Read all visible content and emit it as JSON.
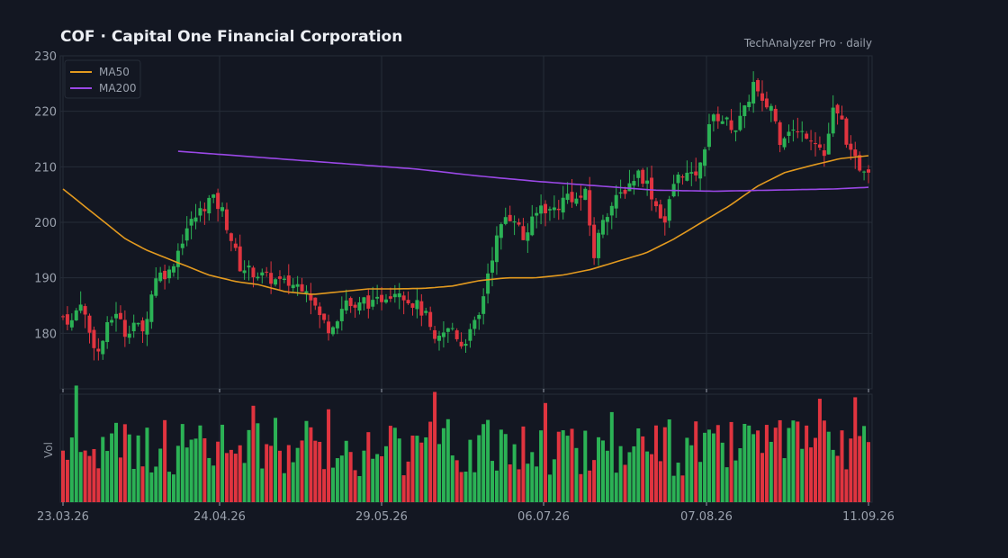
{
  "header": {
    "title": "COF  ·  Capital One Financial Corporation",
    "source": "TechAnalyzer Pro · daily"
  },
  "colors": {
    "up": "#2bb255",
    "down": "#e0343f",
    "ma50": "#e39a1f",
    "ma200": "#9a48e6",
    "grid": "#262c38",
    "background": "#131722"
  },
  "chart_data": {
    "type": "candlestick",
    "title": "COF  ·  Capital One Financial Corporation",
    "ylim": [
      170,
      230
    ],
    "yticks": [
      180,
      190,
      200,
      210,
      220,
      230
    ],
    "xticks": [
      "23.03.26",
      "24.04.26",
      "29.05.26",
      "06.07.26",
      "07.08.26",
      "11.09.26"
    ],
    "volume_label": "Vol",
    "grid": true,
    "legend": {
      "placement": "top-left",
      "entries": [
        "MA50",
        "MA200"
      ]
    },
    "candles": [],
    "ma50": [],
    "ma200": [],
    "control_points": {
      "close": [
        [
          0,
          183
        ],
        [
          2,
          182
        ],
        [
          4,
          186
        ],
        [
          6,
          180
        ],
        [
          8,
          176.5
        ],
        [
          10,
          181
        ],
        [
          12,
          184
        ],
        [
          14,
          180
        ],
        [
          16,
          182
        ],
        [
          18,
          180
        ],
        [
          21,
          190.5
        ],
        [
          24,
          191
        ],
        [
          26,
          195
        ],
        [
          28,
          199
        ],
        [
          30,
          201
        ],
        [
          33,
          204
        ],
        [
          34,
          204
        ],
        [
          36,
          202
        ],
        [
          38,
          197
        ],
        [
          40,
          192
        ],
        [
          43,
          191
        ],
        [
          46,
          190
        ],
        [
          50,
          189
        ],
        [
          55,
          188.5
        ],
        [
          58,
          183
        ],
        [
          60,
          181
        ],
        [
          62,
          183
        ],
        [
          64,
          186
        ],
        [
          66,
          184
        ],
        [
          68,
          186
        ],
        [
          70,
          185
        ],
        [
          73,
          187
        ],
        [
          76,
          188
        ],
        [
          78,
          186
        ],
        [
          80,
          185
        ],
        [
          82,
          183
        ],
        [
          84,
          178
        ],
        [
          86,
          180
        ],
        [
          88,
          181
        ],
        [
          90,
          178
        ],
        [
          92,
          180
        ],
        [
          94,
          183
        ],
        [
          96,
          191
        ],
        [
          98,
          197
        ],
        [
          100,
          201
        ],
        [
          102,
          201
        ],
        [
          104,
          197
        ],
        [
          106,
          200
        ],
        [
          108,
          203
        ],
        [
          110,
          202
        ],
        [
          112,
          203
        ],
        [
          114,
          205
        ],
        [
          116,
          204
        ],
        [
          118,
          205
        ],
        [
          120,
          194
        ],
        [
          122,
          201
        ],
        [
          124,
          203
        ],
        [
          126,
          205
        ],
        [
          128,
          207
        ],
        [
          130,
          209
        ],
        [
          132,
          207
        ],
        [
          134,
          203
        ],
        [
          136,
          200
        ],
        [
          138,
          207
        ],
        [
          140,
          209
        ],
        [
          142,
          208
        ],
        [
          144,
          210
        ],
        [
          146,
          218
        ],
        [
          148,
          219
        ],
        [
          150,
          218
        ],
        [
          152,
          217
        ],
        [
          154,
          220
        ],
        [
          156,
          225
        ],
        [
          158,
          221
        ],
        [
          160,
          221
        ],
        [
          162,
          215
        ],
        [
          164,
          217
        ],
        [
          166,
          216
        ],
        [
          168,
          216
        ],
        [
          170,
          215
        ],
        [
          172,
          212
        ],
        [
          174,
          220
        ],
        [
          176,
          218
        ],
        [
          178,
          212
        ],
        [
          180,
          210
        ],
        [
          182,
          210
        ]
      ],
      "ma50": [
        [
          0,
          206
        ],
        [
          3,
          203
        ],
        [
          6,
          200
        ],
        [
          9,
          197
        ],
        [
          12,
          195
        ],
        [
          15,
          193.5
        ],
        [
          18,
          192
        ],
        [
          21,
          190.5
        ],
        [
          25,
          189.3
        ],
        [
          28,
          188.8
        ],
        [
          32,
          187.5
        ],
        [
          36,
          187
        ],
        [
          40,
          187.5
        ],
        [
          44,
          188
        ],
        [
          48,
          188
        ],
        [
          52,
          188.1
        ],
        [
          56,
          188.5
        ],
        [
          60,
          189.5
        ],
        [
          64,
          190
        ],
        [
          68,
          190
        ],
        [
          72,
          190.5
        ],
        [
          76,
          191.5
        ],
        [
          80,
          193
        ],
        [
          84,
          194.5
        ],
        [
          88,
          197
        ],
        [
          92,
          200
        ],
        [
          96,
          203
        ],
        [
          100,
          206.5
        ],
        [
          104,
          209
        ],
        [
          108,
          210.3
        ],
        [
          112,
          211.5
        ],
        [
          116,
          212
        ]
      ],
      "ma200": [
        [
          0,
          212.8
        ],
        [
          10,
          212
        ],
        [
          20,
          211.2
        ],
        [
          30,
          210.4
        ],
        [
          40,
          209.6
        ],
        [
          50,
          208.4
        ],
        [
          60,
          207.4
        ],
        [
          70,
          206.6
        ],
        [
          80,
          205.8
        ],
        [
          90,
          205.6
        ],
        [
          100,
          205.8
        ],
        [
          110,
          206
        ],
        [
          116,
          206.3
        ]
      ],
      "ma200_start_index": 26
    }
  }
}
